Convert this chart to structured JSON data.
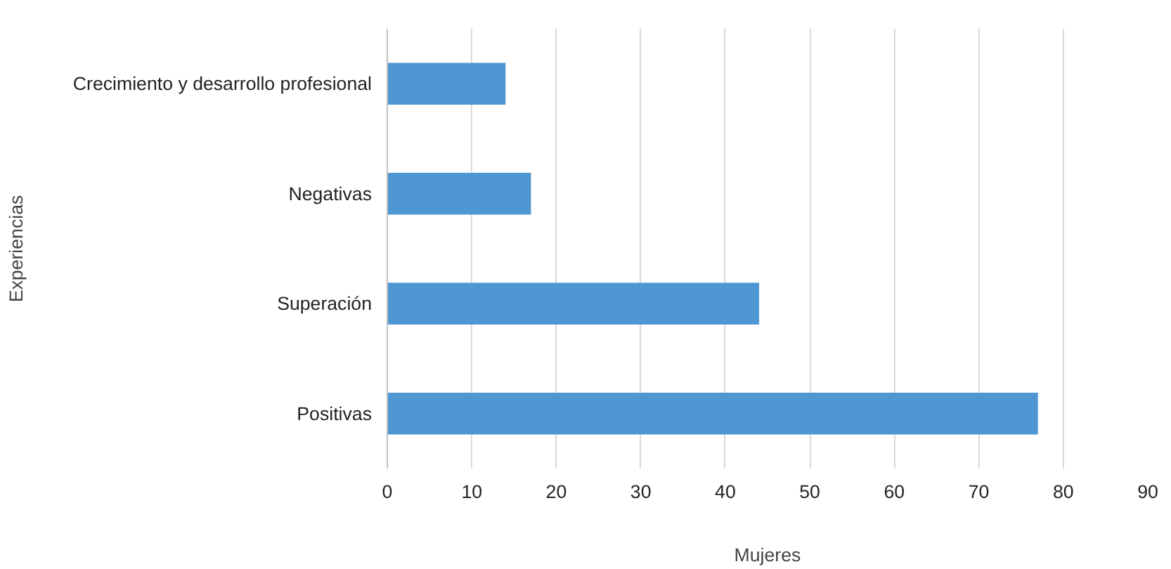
{
  "chart_data": {
    "type": "bar",
    "orientation": "horizontal",
    "xlabel": "Mujeres",
    "ylabel": "Experiencias",
    "categories": [
      "Crecimiento y desarrollo profesional",
      "Negativas",
      "Superación",
      "Positivas"
    ],
    "values": [
      14,
      17,
      44,
      77
    ],
    "color": "#4f97d3",
    "xlim": [
      0,
      90
    ],
    "xticks": [
      0,
      10,
      20,
      30,
      40,
      50,
      60,
      70,
      80,
      90
    ],
    "grid": "x"
  }
}
